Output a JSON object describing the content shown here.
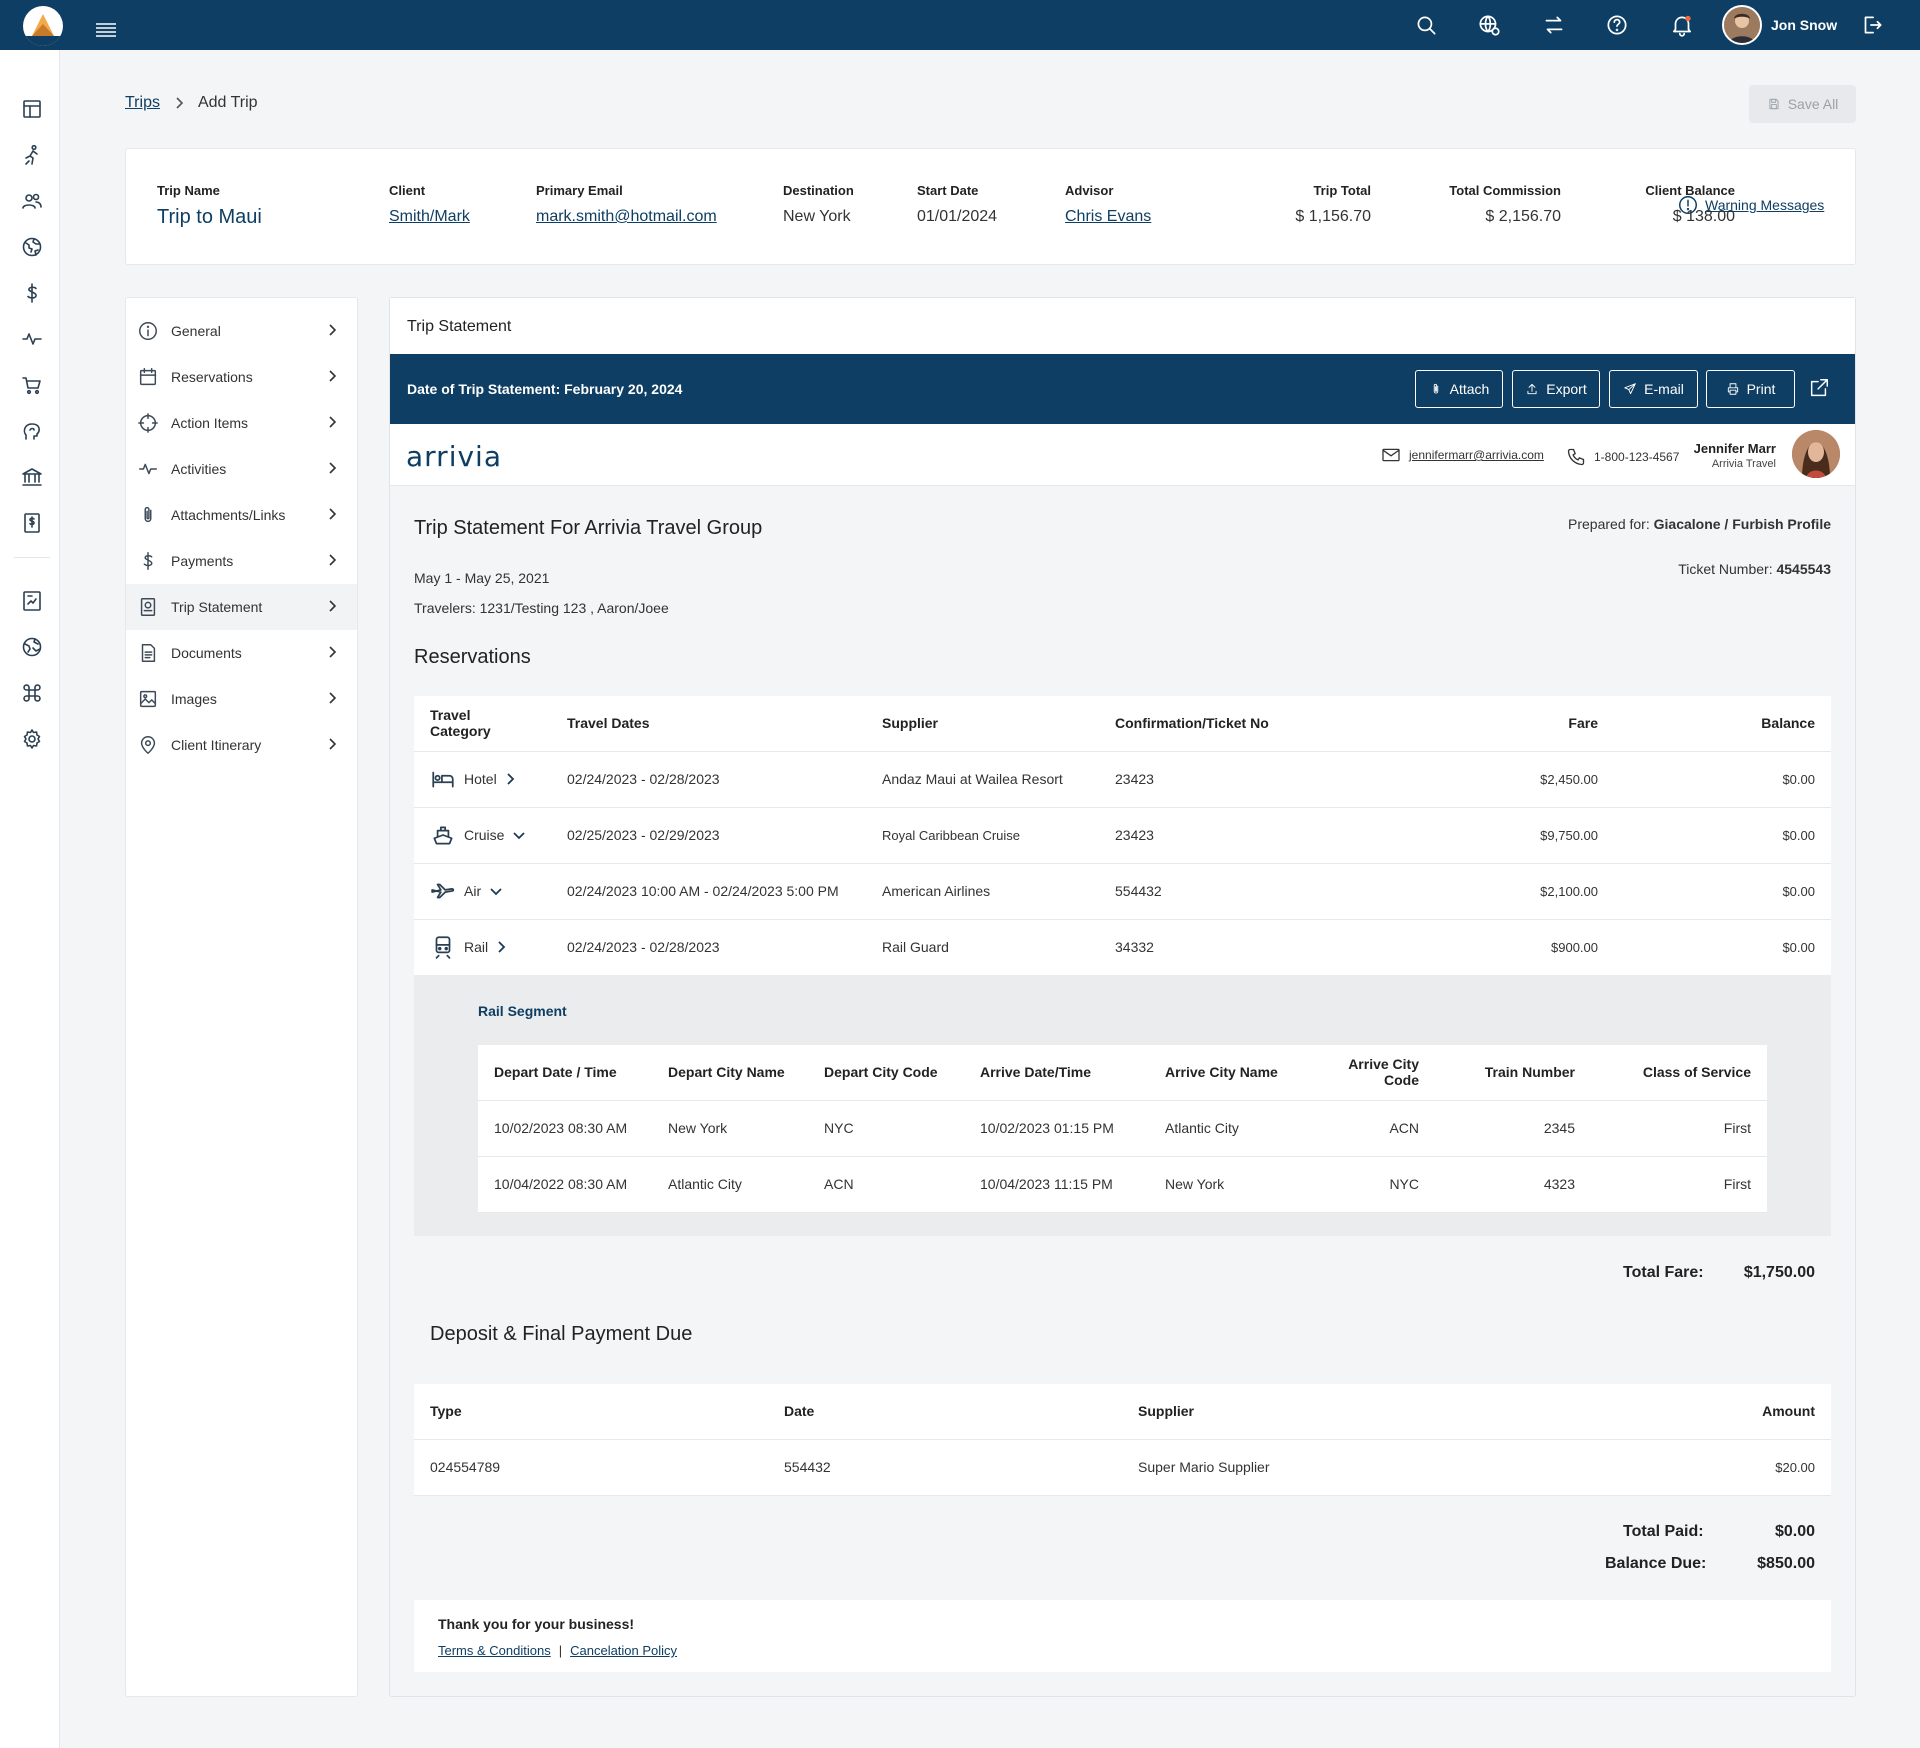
{
  "header": {
    "user_name": "Jon Snow",
    "icons": [
      "search-icon",
      "globe-settings-icon",
      "swap-icon",
      "help-icon",
      "bell-icon",
      "logout-icon"
    ]
  },
  "breadcrumb": {
    "parent": "Trips",
    "current": "Add Trip"
  },
  "toolbar": {
    "save_all_label": "Save All"
  },
  "trip": {
    "name_label": "Trip Name",
    "name": "Trip to Maui",
    "client_label": "Client",
    "client": "Smith/Mark",
    "email_label": "Primary Email",
    "email": "mark.smith@hotmail.com",
    "destination_label": "Destination",
    "destination": "New York",
    "start_label": "Start Date",
    "start": "01/01/2024",
    "advisor_label": "Advisor",
    "advisor": "Chris Evans",
    "total_label": "Trip Total",
    "total": "$ 1,156.70",
    "commission_label": "Total Commission",
    "commission": "$ 2,156.70",
    "balance_label": "Client Balance",
    "balance": "$ 138.00",
    "warning_label": "Warning Messages"
  },
  "side_menu": [
    {
      "label": "General",
      "icon": "info-icon"
    },
    {
      "label": "Reservations",
      "icon": "calendar-icon"
    },
    {
      "label": "Action Items",
      "icon": "target-icon"
    },
    {
      "label": "Activities",
      "icon": "activity-icon"
    },
    {
      "label": "Attachments/Links",
      "icon": "paperclip-icon"
    },
    {
      "label": "Payments",
      "icon": "dollar-icon"
    },
    {
      "label": "Trip Statement",
      "icon": "statement-icon",
      "active": true
    },
    {
      "label": "Documents",
      "icon": "document-icon"
    },
    {
      "label": "Images",
      "icon": "image-icon"
    },
    {
      "label": "Client Itinerary",
      "icon": "location-icon"
    }
  ],
  "statement": {
    "panel_title": "Trip Statement",
    "date_line": "Date of Trip Statement: February 20, 2024",
    "buttons": {
      "attach": "Attach",
      "export": "Export",
      "email": "E-mail",
      "print": "Print"
    },
    "brand": "arrivia",
    "contact_email": "jennifermarr@arrivia.com",
    "contact_phone": "1-800-123-4567",
    "agent_name": "Jennifer Marr",
    "agent_company": "Arrivia Travel",
    "title": "Trip Statement For Arrivia Travel Group",
    "prepared_label": "Prepared for:",
    "prepared_value": "Giacalone / Furbish Profile",
    "ticket_label": "Ticket Number:",
    "ticket_value": "4545543",
    "date_range": "May 1 - May 25, 2021",
    "travelers": "Travelers: 1231/Testing 123 , Aaron/Joee",
    "reservations_title": "Reservations",
    "res_headers": [
      "Travel Category",
      "Travel Dates",
      "Supplier",
      "Confirmation/Ticket No",
      "Fare",
      "Balance"
    ],
    "reservations": [
      {
        "category": "Hotel",
        "dates": "02/24/2023 - 02/28/2023",
        "supplier": "Andaz Maui at Wailea Resort",
        "conf": "23423",
        "fare": "$2,450.00",
        "balance": "$0.00"
      },
      {
        "category": "Cruise",
        "dates": "02/25/2023 - 02/29/2023",
        "supplier": "Royal Caribbean Cruise",
        "conf": "23423",
        "fare": "$9,750.00",
        "balance": "$0.00"
      },
      {
        "category": "Air",
        "dates": "02/24/2023 10:00 AM - 02/24/2023 5:00 PM",
        "supplier": "American Airlines",
        "conf": "554432",
        "fare": "$2,100.00",
        "balance": "$0.00"
      },
      {
        "category": "Rail",
        "dates": "02/24/2023 - 02/28/2023",
        "supplier": "Rail Guard",
        "conf": "34332",
        "fare": "$900.00",
        "balance": "$0.00"
      }
    ],
    "rail_segment_title": "Rail Segment",
    "seg_headers": [
      "Depart Date / Time",
      "Depart City Name",
      "Depart City Code",
      "Arrive Date/Time",
      "Arrive City Name",
      "Arrive City Code",
      "Train Number",
      "Class of Service"
    ],
    "segments": [
      {
        "depart_dt": "10/02/2023 08:30 AM",
        "depart_city": "New York",
        "depart_code": "NYC",
        "arrive_dt": "10/02/2023  01:15 PM",
        "arrive_city": "Atlantic City",
        "arrive_code": "ACN",
        "train": "2345",
        "class": "First"
      },
      {
        "depart_dt": "10/04/2022 08:30 AM",
        "depart_city": "Atlantic City",
        "depart_code": "ACN",
        "arrive_dt": "10/04/2023  11:15 PM",
        "arrive_city": "New York",
        "arrive_code": "NYC",
        "train": "4323",
        "class": "First"
      }
    ],
    "total_fare_label": "Total Fare:",
    "total_fare": "$1,750.00",
    "deposit_title": "Deposit & Final Payment Due",
    "dep_headers": [
      "Type",
      "Date",
      "Supplier",
      "Amount"
    ],
    "deposits": [
      {
        "type": "024554789",
        "date": "554432",
        "supplier": "Super Mario Supplier",
        "amount": "$20.00"
      }
    ],
    "total_paid_label": "Total Paid:",
    "total_paid": "$0.00",
    "balance_due_label": "Balance Due:",
    "balance_due": "$850.00",
    "thanks": "Thank you for your business!",
    "terms": "Terms & Conditions",
    "separator": "|",
    "cancel_policy": "Cancelation Policy"
  }
}
